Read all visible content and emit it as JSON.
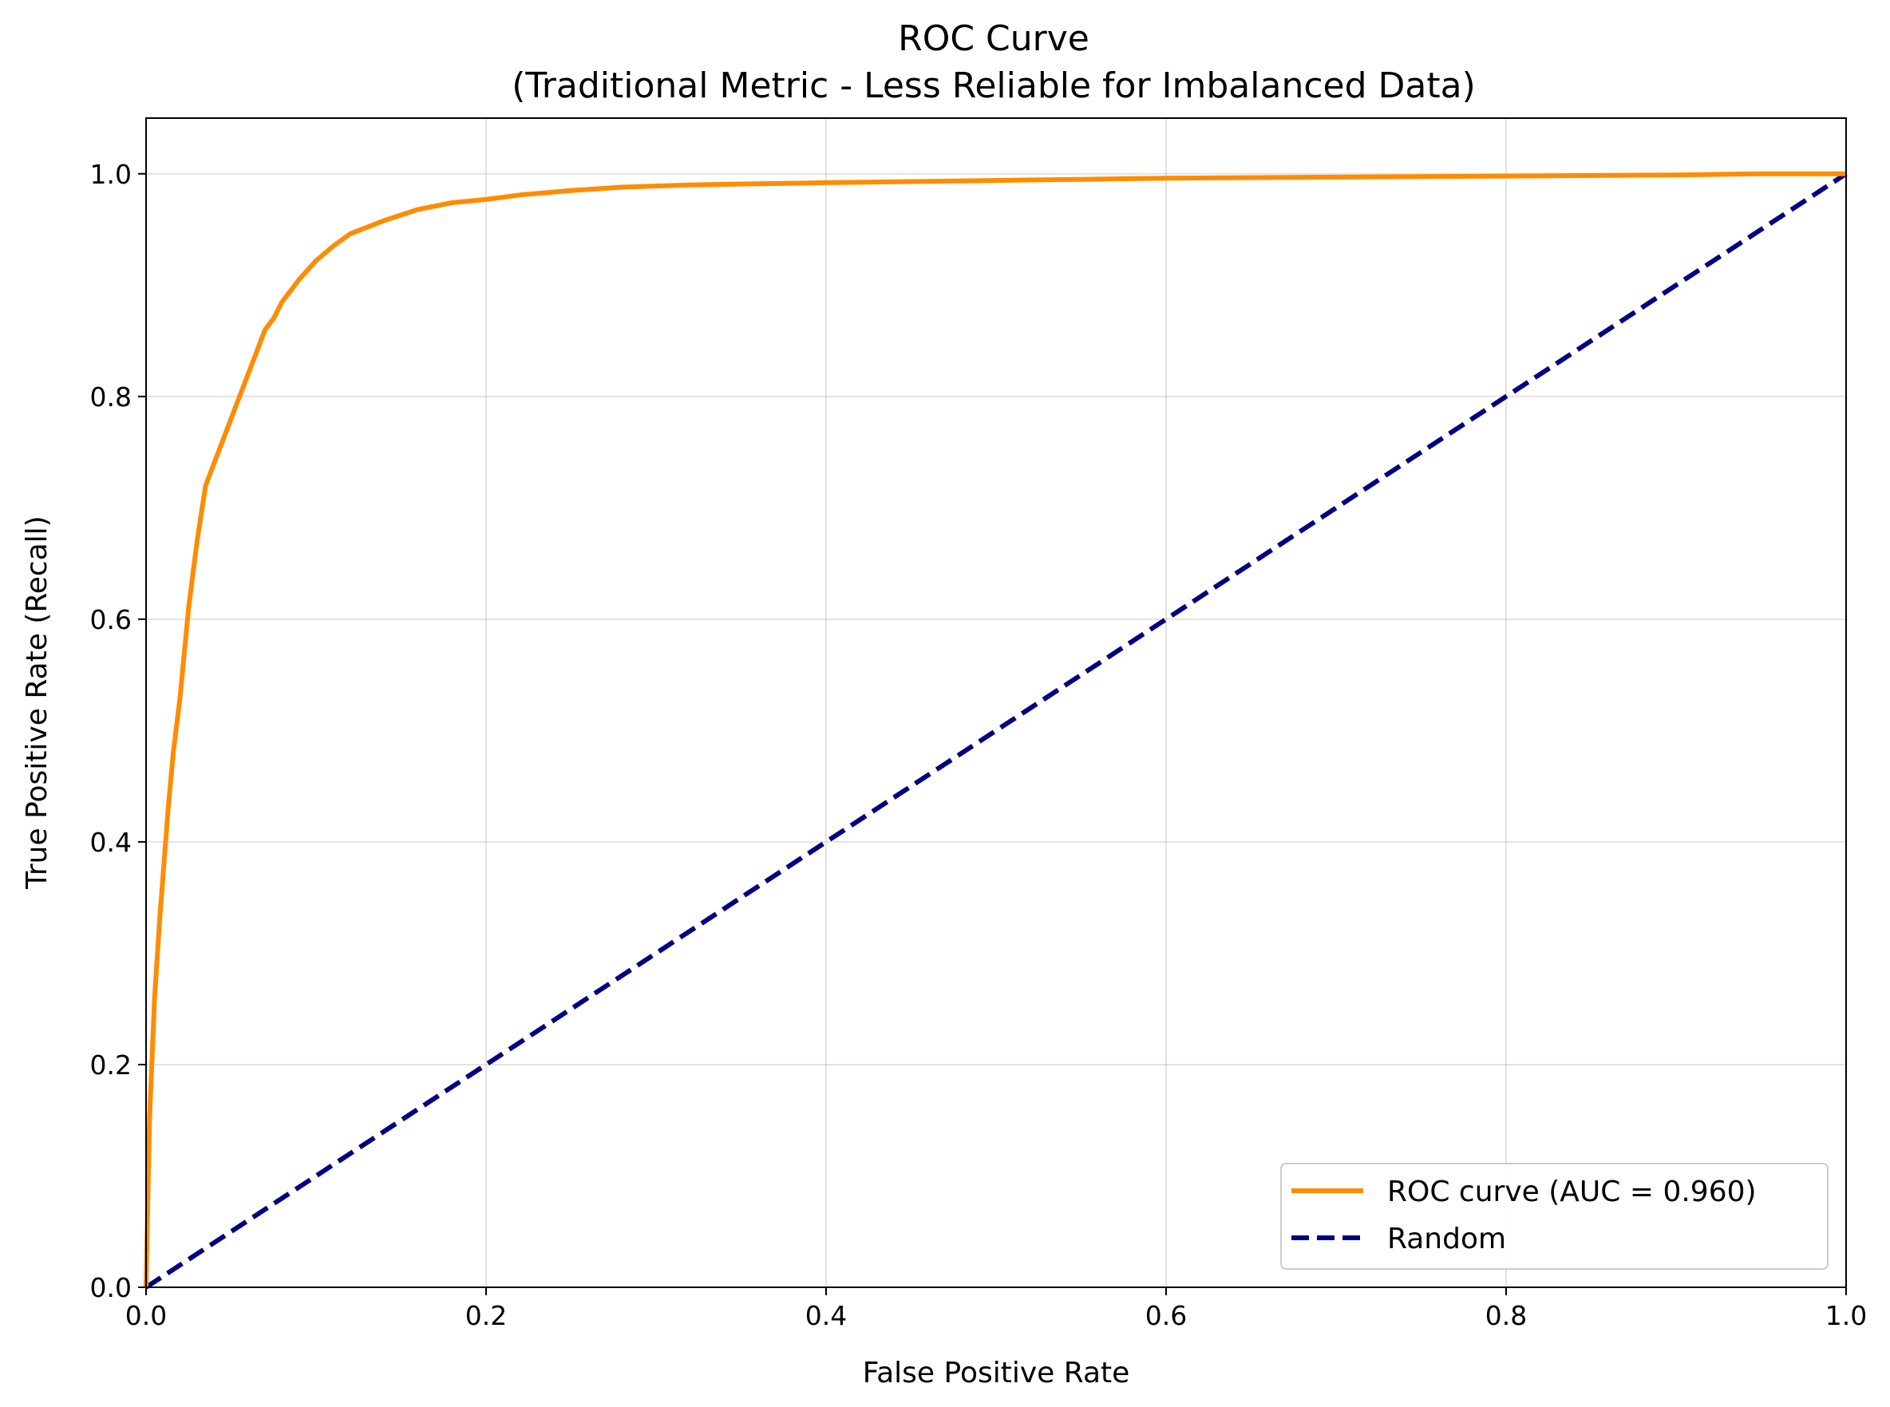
{
  "chart_data": {
    "type": "line",
    "title": "ROC Curve",
    "subtitle": "(Traditional Metric - Less Reliable for Imbalanced Data)",
    "xlabel": "False Positive Rate",
    "ylabel": "True Positive Rate (Recall)",
    "xlim": [
      0.0,
      1.0
    ],
    "ylim": [
      0.0,
      1.05
    ],
    "x_ticks": [
      "0.0",
      "0.2",
      "0.4",
      "0.6",
      "0.8",
      "1.0"
    ],
    "y_ticks": [
      "0.0",
      "0.2",
      "0.4",
      "0.6",
      "0.8",
      "1.0"
    ],
    "grid": true,
    "legend_position": "lower-right",
    "series": [
      {
        "name": "ROC curve (AUC = 0.960)",
        "color": "#ff8c00",
        "style": "solid",
        "x": [
          0.0,
          0.002,
          0.005,
          0.008,
          0.01,
          0.013,
          0.016,
          0.02,
          0.025,
          0.03,
          0.035,
          0.04,
          0.045,
          0.05,
          0.055,
          0.06,
          0.065,
          0.07,
          0.075,
          0.08,
          0.085,
          0.09,
          0.1,
          0.11,
          0.12,
          0.13,
          0.14,
          0.15,
          0.16,
          0.18,
          0.2,
          0.22,
          0.25,
          0.28,
          0.32,
          0.36,
          0.4,
          0.45,
          0.5,
          0.55,
          0.6,
          0.7,
          0.8,
          0.9,
          0.95,
          1.0
        ],
        "y": [
          0.0,
          0.15,
          0.26,
          0.33,
          0.37,
          0.43,
          0.48,
          0.53,
          0.61,
          0.67,
          0.72,
          0.74,
          0.76,
          0.78,
          0.8,
          0.82,
          0.84,
          0.86,
          0.87,
          0.885,
          0.895,
          0.905,
          0.922,
          0.935,
          0.946,
          0.952,
          0.958,
          0.963,
          0.968,
          0.974,
          0.977,
          0.981,
          0.985,
          0.988,
          0.99,
          0.991,
          0.992,
          0.993,
          0.994,
          0.995,
          0.996,
          0.997,
          0.998,
          0.999,
          1.0,
          1.0
        ]
      },
      {
        "name": "Random",
        "color": "#000080",
        "style": "dashed",
        "x": [
          0.0,
          1.0
        ],
        "y": [
          0.0,
          1.0
        ]
      }
    ]
  }
}
